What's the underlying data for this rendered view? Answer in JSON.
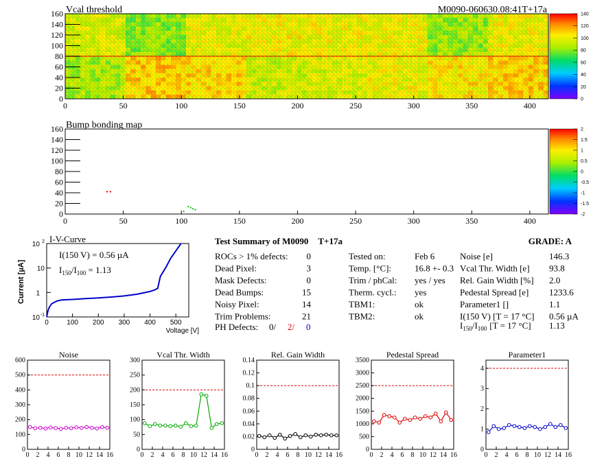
{
  "vcal_map": {
    "title": "Vcal threshold",
    "module_label": "M0090-060630.08:41T+17a",
    "x_ticks": [
      "0",
      "50",
      "100",
      "150",
      "200",
      "250",
      "300",
      "350",
      "400"
    ],
    "y_ticks": [
      "0",
      "20",
      "40",
      "60",
      "80",
      "100",
      "120",
      "140",
      "160"
    ],
    "xlim": [
      0,
      416
    ],
    "ylim": [
      0,
      160
    ],
    "colorbar_ticks": [
      "0",
      "20",
      "40",
      "60",
      "80",
      "100",
      "120",
      "140"
    ],
    "colorbar_range": [
      0,
      140
    ],
    "roc_mean_thresholds_top": [
      95,
      80,
      98,
      102,
      100,
      100,
      82,
      100
    ],
    "roc_mean_thresholds_bottom": [
      85,
      112,
      108,
      92,
      95,
      100,
      105,
      110
    ]
  },
  "bump_map": {
    "title": "Bump bonding map",
    "x_ticks": [
      "0",
      "50",
      "100",
      "150",
      "200",
      "250",
      "300",
      "350",
      "400"
    ],
    "y_ticks": [
      "0",
      "20",
      "40",
      "60",
      "80",
      "100",
      "120",
      "140",
      "160"
    ],
    "xlim": [
      0,
      416
    ],
    "ylim": [
      0,
      160
    ],
    "colorbar_ticks": [
      "2",
      "1.5",
      "1",
      "0.5",
      "0",
      "-0.5",
      "-1",
      "-1.5",
      "-2"
    ],
    "colorbar_range": [
      -2,
      2
    ],
    "marks": [
      {
        "x": 36,
        "y": 42,
        "color": "#e00000"
      },
      {
        "x": 39,
        "y": 42,
        "color": "#e00000"
      },
      {
        "x": 102,
        "y": 5,
        "color": "#00c000"
      },
      {
        "x": 106,
        "y": 14,
        "color": "#00c000"
      },
      {
        "x": 108,
        "y": 12,
        "color": "#00c000"
      },
      {
        "x": 110,
        "y": 10,
        "color": "#00c000"
      },
      {
        "x": 112,
        "y": 8,
        "color": "#00c000"
      }
    ]
  },
  "iv_curve": {
    "title": "I-V-Curve",
    "ylabel": "Current [µA]",
    "xlabel": "Voltage [V]",
    "x_ticks": [
      "0",
      "100",
      "200",
      "300",
      "400",
      "500"
    ],
    "y_ticks": [
      "10",
      "1",
      "10"
    ],
    "y_tick_exps": [
      "-1",
      "",
      "2"
    ],
    "i150_label": "I(150 V) = 0.56 µA",
    "ratio_label_sub1": "150",
    "ratio_label_sub2": "100",
    "ratio_value": "1.13",
    "chart_data": {
      "type": "line",
      "x": [
        0,
        5,
        10,
        20,
        40,
        60,
        100,
        150,
        200,
        250,
        300,
        350,
        400,
        420,
        430,
        440,
        460,
        480,
        500,
        520
      ],
      "y": [
        0.1,
        0.18,
        0.25,
        0.35,
        0.45,
        0.5,
        0.52,
        0.56,
        0.6,
        0.65,
        0.72,
        0.85,
        1.1,
        1.3,
        1.5,
        4.5,
        10,
        25,
        50,
        100
      ],
      "xlim": [
        0,
        550
      ],
      "ylim": [
        0.1,
        100
      ],
      "log_y": true
    }
  },
  "summary": {
    "title": "Test Summary of M0090",
    "title_suffix": "T+17a",
    "grade_label": "GRADE:  A",
    "col1": [
      {
        "label": "ROCs > 1% defects:",
        "value": "0"
      },
      {
        "label": "Dead Pixel:",
        "value": "3"
      },
      {
        "label": "Mask Defects:",
        "value": "0"
      },
      {
        "label": "Dead Bumps:",
        "value": "15"
      },
      {
        "label": "Noisy Pixel:",
        "value": "14"
      },
      {
        "label": "Trim Problems:",
        "value": "21"
      }
    ],
    "ph_label": "PH Defects:",
    "ph_v1": "0/",
    "ph_v2": "2/",
    "ph_v3": "0",
    "col2": [
      {
        "label": "Tested on:",
        "value": "Feb 6"
      },
      {
        "label": "Temp. [°C]:",
        "value": "16.8 +- 0.3"
      },
      {
        "label": "Trim / phCal:",
        "value": "yes / yes"
      },
      {
        "label": "Therm. cycl.:",
        "value": "yes"
      },
      {
        "label": "TBM1:",
        "value": "ok"
      },
      {
        "label": "TBM2:",
        "value": "ok"
      }
    ],
    "col3": [
      {
        "label": "Noise [e]",
        "value": "146.3"
      },
      {
        "label": "Vcal Thr. Width [e]",
        "value": "93.8"
      },
      {
        "label": "Rel. Gain Width [%]",
        "value": "2.0"
      },
      {
        "label": "Pedestal Spread [e]",
        "value": "1233.6"
      },
      {
        "label": "Parameter1 []",
        "value": "1.1"
      },
      {
        "label": "I(150 V) [T = 17 °C]",
        "value": "0.56 µA"
      }
    ],
    "ratio_row_label": "[T = 17 °C]",
    "ratio_row_sub1": "150",
    "ratio_row_sub2": "100",
    "ratio_row_value": "1.13"
  },
  "chart_data": [
    {
      "type": "line",
      "title": "Noise",
      "color": "#cc00cc",
      "x": [
        0,
        1,
        2,
        3,
        4,
        5,
        6,
        7,
        8,
        9,
        10,
        11,
        12,
        13,
        14,
        15
      ],
      "y": [
        150,
        142,
        145,
        140,
        147,
        143,
        138,
        145,
        142,
        148,
        144,
        150,
        145,
        140,
        150,
        145
      ],
      "ylim": [
        0,
        600
      ],
      "limit": 500,
      "y_ticks": [
        "0",
        "100",
        "200",
        "300",
        "400",
        "500",
        "600"
      ],
      "x_ticks": [
        "0",
        "2",
        "4",
        "6",
        "8",
        "10",
        "12",
        "14",
        "16"
      ]
    },
    {
      "type": "line",
      "title": "Vcal Thr. Width",
      "color": "#00aa00",
      "x": [
        0,
        1,
        2,
        3,
        4,
        5,
        6,
        7,
        8,
        9,
        10,
        11,
        12,
        13,
        14,
        15
      ],
      "y": [
        88,
        78,
        85,
        80,
        80,
        78,
        80,
        76,
        88,
        78,
        80,
        185,
        180,
        72,
        85,
        88
      ],
      "ylim": [
        0,
        300
      ],
      "limit": 200,
      "y_ticks": [
        "0",
        "50",
        "100",
        "150",
        "200",
        "250",
        "300"
      ],
      "x_ticks": [
        "0",
        "2",
        "4",
        "6",
        "8",
        "10",
        "12",
        "14",
        "16"
      ]
    },
    {
      "type": "line",
      "title": "Rel. Gain Width",
      "color": "#000000",
      "x": [
        0,
        1,
        2,
        3,
        4,
        5,
        6,
        7,
        8,
        9,
        10,
        11,
        12,
        13,
        14,
        15
      ],
      "y": [
        0.021,
        0.019,
        0.022,
        0.018,
        0.023,
        0.017,
        0.021,
        0.024,
        0.019,
        0.022,
        0.02,
        0.023,
        0.022,
        0.023,
        0.022,
        0.022
      ],
      "ylim": [
        0,
        0.14
      ],
      "limit": 0.1,
      "y_ticks": [
        "0",
        "0.02",
        "0.04",
        "0.06",
        "0.08",
        "0.1",
        "0.12",
        "0.14"
      ],
      "x_ticks": [
        "0",
        "2",
        "4",
        "6",
        "8",
        "10",
        "12",
        "14",
        "16"
      ]
    },
    {
      "type": "line",
      "title": "Pedestal Spread",
      "color": "#dd0000",
      "x": [
        0,
        1,
        2,
        3,
        4,
        5,
        6,
        7,
        8,
        9,
        10,
        11,
        12,
        13,
        14,
        15
      ],
      "y": [
        1100,
        1050,
        1350,
        1300,
        1250,
        1050,
        1200,
        1150,
        1250,
        1200,
        1300,
        1250,
        1400,
        1100,
        1450,
        1150
      ],
      "ylim": [
        0,
        3500
      ],
      "limit": 2500,
      "y_ticks": [
        "0",
        "500",
        "1000",
        "1500",
        "2000",
        "2500",
        "3000",
        "3500"
      ],
      "x_ticks": [
        "0",
        "2",
        "4",
        "6",
        "8",
        "10",
        "12",
        "14",
        "16"
      ]
    },
    {
      "type": "line",
      "title": "Parameter1",
      "color": "#0000cc",
      "x": [
        0,
        1,
        2,
        3,
        4,
        5,
        6,
        7,
        8,
        9,
        10,
        11,
        12,
        13,
        14,
        15
      ],
      "y": [
        0.85,
        1.15,
        1.0,
        1.05,
        1.2,
        1.15,
        1.1,
        1.05,
        1.15,
        1.1,
        1.0,
        1.1,
        1.25,
        1.1,
        1.2,
        1.05
      ],
      "ylim": [
        0,
        4.4
      ],
      "limit": 4,
      "y_ticks": [
        "0",
        "1",
        "2",
        "3",
        "4"
      ],
      "x_ticks": [
        "0",
        "2",
        "4",
        "6",
        "8",
        "10",
        "12",
        "14",
        "16"
      ]
    }
  ]
}
